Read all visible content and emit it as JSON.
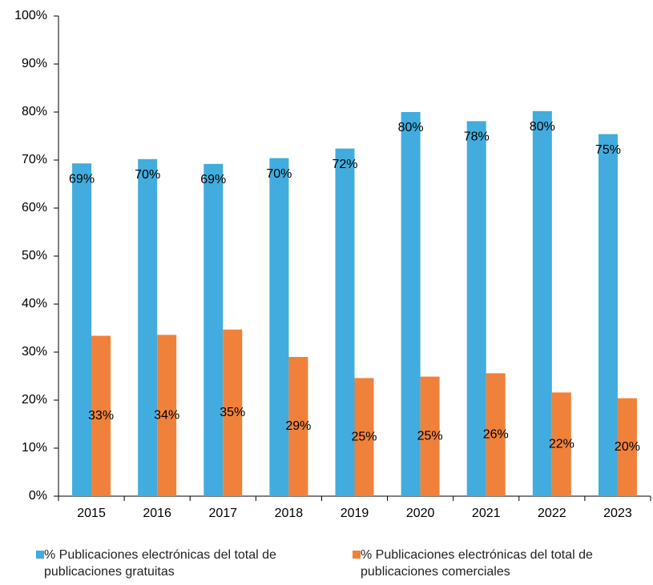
{
  "chart_data": {
    "type": "bar",
    "categories": [
      "2015",
      "2016",
      "2017",
      "2018",
      "2019",
      "2020",
      "2021",
      "2022",
      "2023"
    ],
    "series": [
      {
        "name": "% Publicaciones electrónicas del total de publicaciones gratuitas",
        "color": "#41acdd",
        "values": [
          69.3,
          70.2,
          69.2,
          70.4,
          72.4,
          80.0,
          78.1,
          80.2,
          75.4
        ],
        "value_labels": [
          "69%",
          "70%",
          "69%",
          "70%",
          "72%",
          "80%",
          "78%",
          "80%",
          "75%"
        ]
      },
      {
        "name": "% Publicaciones electrónicas del total de publicaciones comerciales",
        "color": "#f0813a",
        "values": [
          33.4,
          33.6,
          34.7,
          29.0,
          24.6,
          24.9,
          25.6,
          21.6,
          20.4
        ],
        "value_labels": [
          "33%",
          "34%",
          "35%",
          "29%",
          "25%",
          "25%",
          "26%",
          "22%",
          "20%"
        ]
      }
    ],
    "ylim": [
      0,
      100
    ],
    "yticks": [
      {
        "value": 0,
        "label": "0%"
      },
      {
        "value": 10,
        "label": "10%"
      },
      {
        "value": 20,
        "label": "20%"
      },
      {
        "value": 30,
        "label": "30%"
      },
      {
        "value": 40,
        "label": "40%"
      },
      {
        "value": 50,
        "label": "50%"
      },
      {
        "value": 60,
        "label": "60%"
      },
      {
        "value": 70,
        "label": "70%"
      },
      {
        "value": 80,
        "label": "80%"
      },
      {
        "value": 90,
        "label": "90%"
      },
      {
        "value": 100,
        "label": "100%"
      }
    ],
    "legend": "bottom"
  }
}
